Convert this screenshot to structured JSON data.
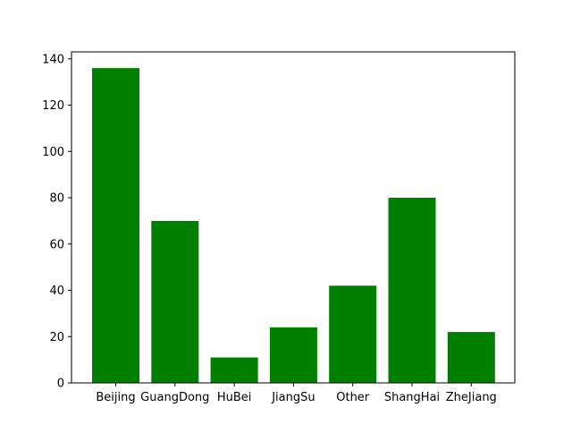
{
  "chart_data": {
    "type": "bar",
    "categories": [
      "Beijing",
      "GuangDong",
      "HuBei",
      "JiangSu",
      "Other",
      "ShangHai",
      "ZheJiang"
    ],
    "values": [
      136,
      70,
      11,
      24,
      42,
      80,
      22
    ],
    "title": "",
    "xlabel": "",
    "ylabel": "",
    "ylim": [
      0,
      143
    ],
    "yticks": [
      0,
      20,
      40,
      60,
      80,
      100,
      120,
      140
    ],
    "grid": false,
    "legend": "none",
    "colors": {
      "bar": "#008000",
      "axis": "#000000",
      "background": "#ffffff"
    }
  }
}
